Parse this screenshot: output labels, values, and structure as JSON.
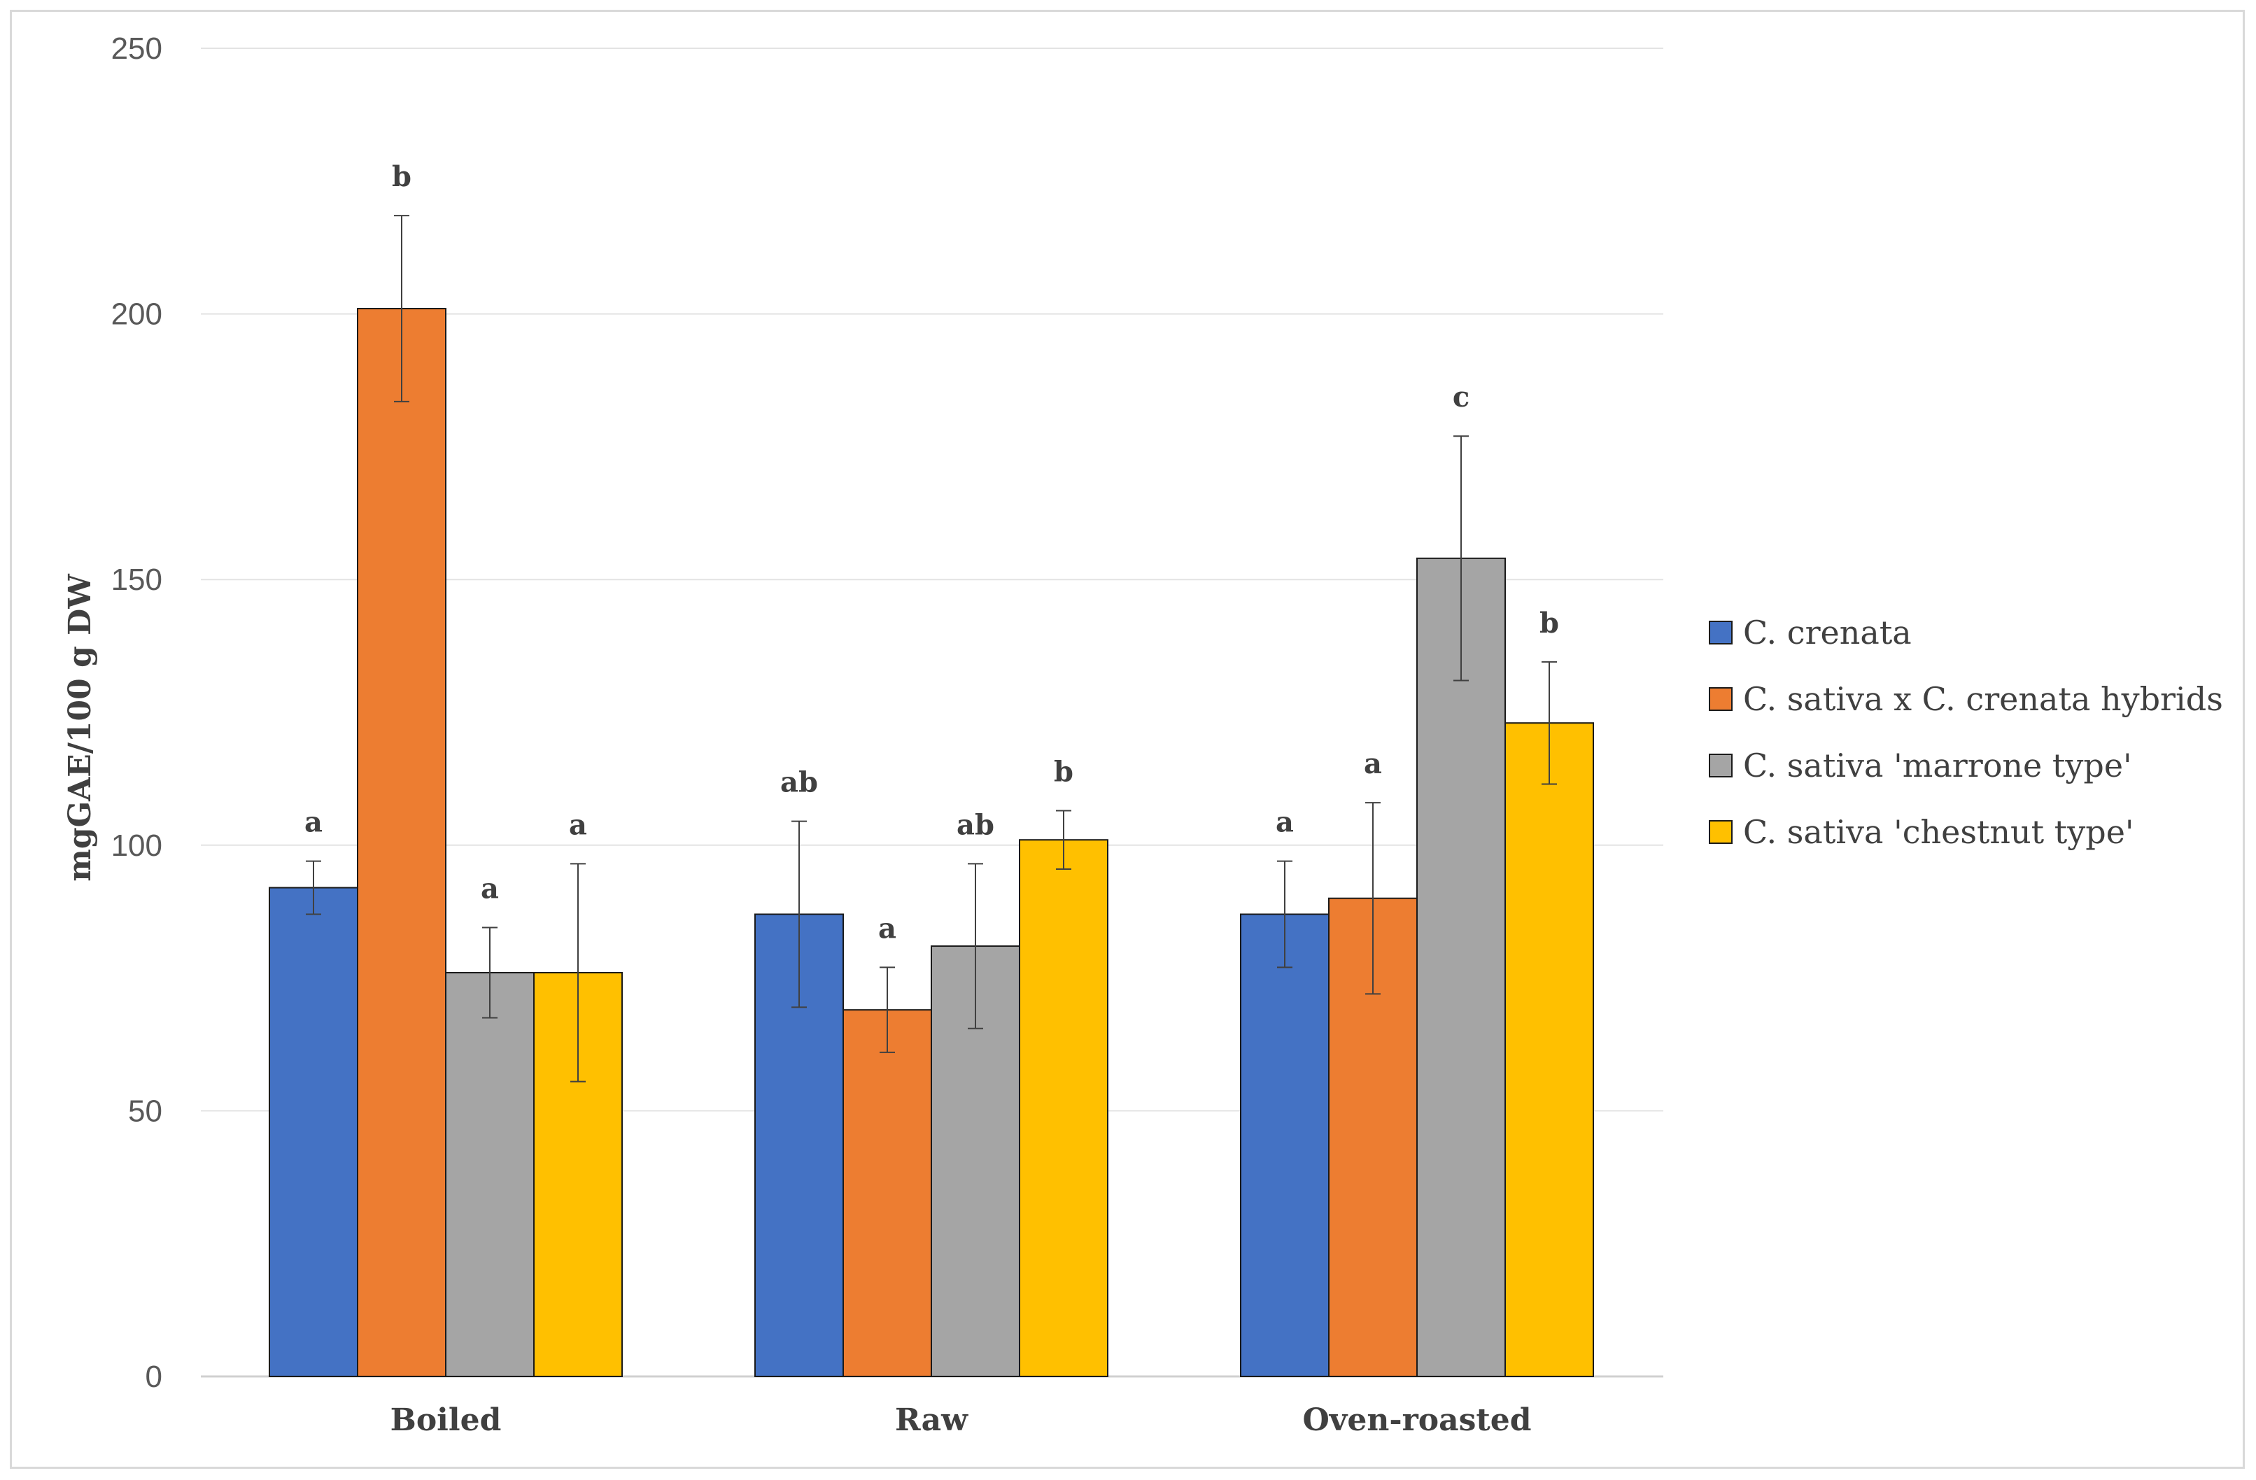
{
  "chart_data": {
    "type": "bar",
    "title": "",
    "xlabel": "",
    "ylabel": "mgGAE/100 g DW",
    "ylim": [
      0,
      250
    ],
    "yticks": [
      0,
      50,
      100,
      150,
      200,
      250
    ],
    "grid": true,
    "legend_position": "right",
    "categories": [
      "Boiled",
      "Raw",
      "Oven-roasted"
    ],
    "series": [
      {
        "name": "C. crenata",
        "color": "#4472C4",
        "values": [
          92,
          87,
          87
        ],
        "errors": [
          5,
          17.5,
          10
        ],
        "labels": [
          "a",
          "ab",
          "a"
        ]
      },
      {
        "name": "C. sativa x C. crenata hybrids",
        "color": "#ED7D31",
        "values": [
          201,
          69,
          90
        ],
        "errors": [
          17.5,
          8,
          18
        ],
        "labels": [
          "b",
          "a",
          "a"
        ]
      },
      {
        "name": "C. sativa 'marrone type'",
        "color": "#A5A5A5",
        "values": [
          76,
          81,
          154
        ],
        "errors": [
          8.5,
          15.5,
          23
        ],
        "labels": [
          "a",
          "ab",
          "c"
        ]
      },
      {
        "name": "C. sativa 'chestnut type'",
        "color": "#FFC000",
        "values": [
          76,
          101,
          123
        ],
        "errors": [
          20.5,
          5.5,
          11.5
        ],
        "labels": [
          "a",
          "b",
          "b"
        ]
      }
    ]
  }
}
